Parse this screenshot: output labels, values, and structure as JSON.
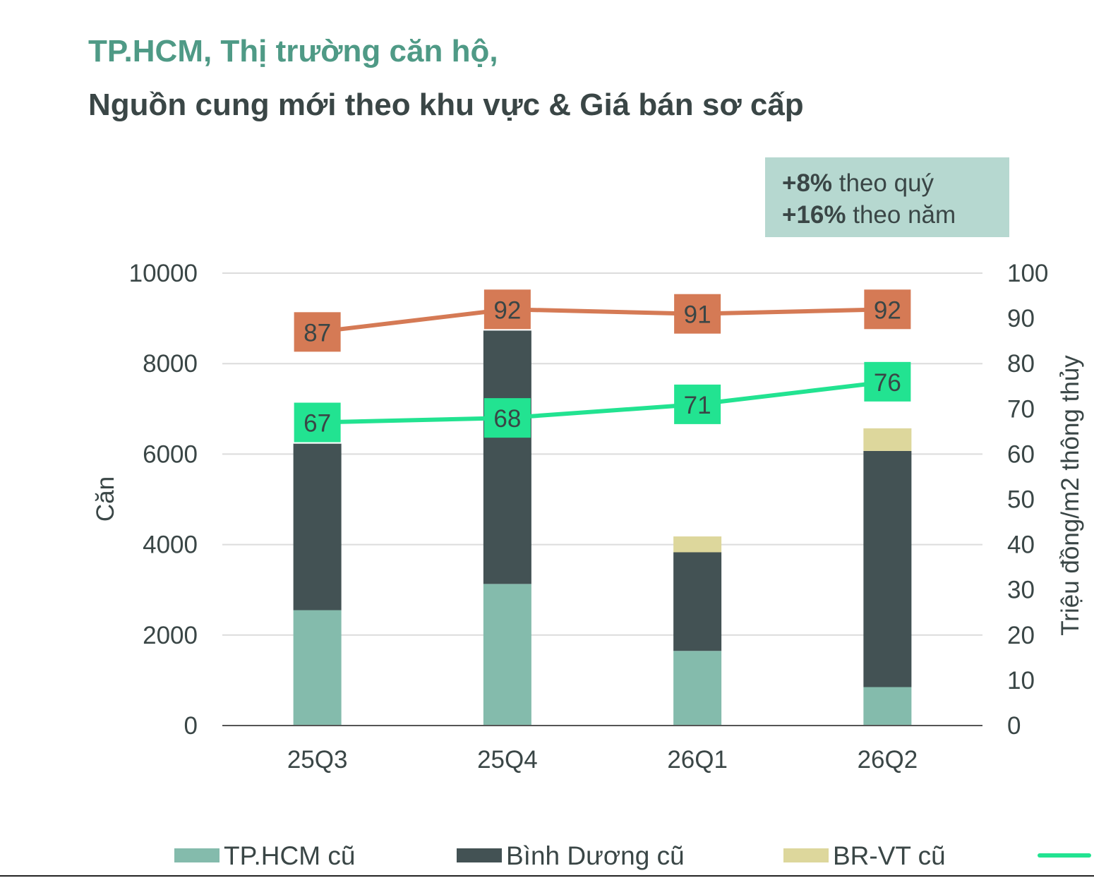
{
  "header": {
    "title": "TP.HCM, Thị trường căn hộ,",
    "subtitle": "Nguồn cung mới theo khu vực & Giá bán sơ cấp"
  },
  "growth_box": {
    "line1_value": "+8%",
    "line1_text": " theo quý",
    "line2_value": "+16%",
    "line2_text": " theo năm"
  },
  "colors": {
    "tphcm": "#84bbac",
    "binhduong": "#435254",
    "brvt": "#ddd79c",
    "green_line": "#22e391",
    "orange_line": "#d57a55",
    "grid": "#dcdcdc",
    "axis": "#555555"
  },
  "chart_data": {
    "type": "bar",
    "stacked": true,
    "categories": [
      "25Q3",
      "25Q4",
      "26Q1",
      "26Q2"
    ],
    "series": [
      {
        "name": "TP.HCM cũ",
        "values": [
          2550,
          3130,
          1650,
          850
        ]
      },
      {
        "name": "Bình Dương cũ",
        "values": [
          3680,
          5600,
          2180,
          5220
        ]
      },
      {
        "name": "BR-VT cũ",
        "values": [
          0,
          0,
          350,
          500
        ]
      }
    ],
    "line_series": [
      {
        "name": "",
        "axis": "right",
        "values": [
          87,
          92,
          91,
          92
        ]
      },
      {
        "name": "",
        "axis": "right",
        "values": [
          67,
          68,
          71,
          76
        ]
      }
    ],
    "ylabel_left": "Căn",
    "ylabel_right": "Triệu đồng/m2 thông thủy",
    "ylim_left": [
      0,
      10000
    ],
    "ylim_right": [
      0,
      100
    ],
    "yticks_left": [
      "0",
      "2000",
      "4000",
      "6000",
      "8000",
      "10000"
    ],
    "yticks_right": [
      "0",
      "10",
      "20",
      "30",
      "40",
      "50",
      "60",
      "70",
      "80",
      "90",
      "100"
    ],
    "grid": true,
    "legend_placement": "bottom"
  },
  "legend": [
    {
      "label": "TP.HCM cũ",
      "kind": "box"
    },
    {
      "label": "Bình Dương cũ",
      "kind": "box"
    },
    {
      "label": "BR-VT cũ",
      "kind": "box"
    },
    {
      "label": "",
      "kind": "line"
    }
  ]
}
